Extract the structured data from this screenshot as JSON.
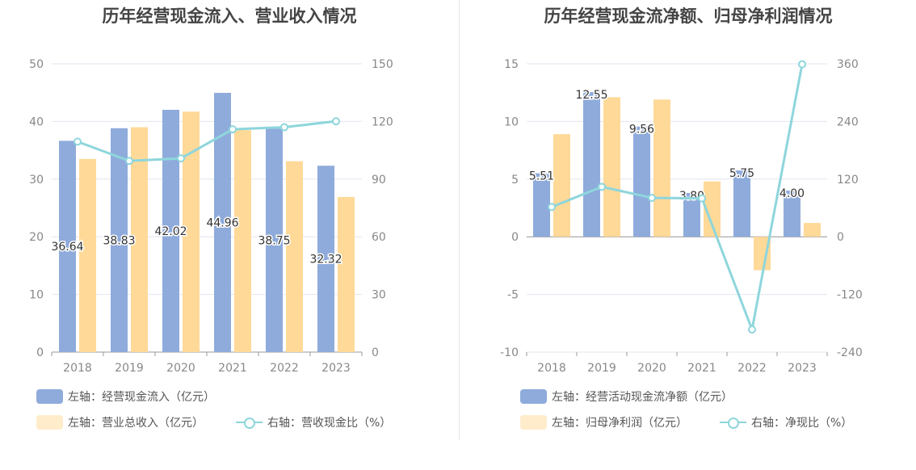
{
  "colors": {
    "blue": "#8eabdb",
    "yellow": "#ffd998",
    "line": "#8ed6dc",
    "axis": "#888888",
    "grid": "#e3e6ef"
  },
  "chart_data": [
    {
      "type": "bar",
      "title": "历年经营现金流入、营业收入情况",
      "categories": [
        "2018",
        "2019",
        "2020",
        "2021",
        "2022",
        "2023"
      ],
      "y_left": {
        "range": [
          0,
          50
        ],
        "ticks": [
          0,
          10,
          20,
          30,
          40,
          50
        ]
      },
      "y_right": {
        "range": [
          0,
          150
        ],
        "ticks": [
          0,
          30,
          60,
          90,
          120,
          150
        ]
      },
      "series": [
        {
          "name": "左轴：经营现金流入（亿元）",
          "axis": "left",
          "kind": "bar",
          "color": "#8eabdb",
          "values": [
            36.64,
            38.83,
            42.02,
            44.96,
            38.75,
            32.32
          ],
          "labels": [
            "36.64",
            "38.83",
            "42.02",
            "44.96",
            "38.75",
            "32.32"
          ]
        },
        {
          "name": "左轴：营业总收入（亿元）",
          "axis": "left",
          "kind": "bar",
          "color": "#ffd998",
          "values": [
            33.5,
            39.0,
            41.7,
            38.5,
            33.1,
            26.9
          ]
        },
        {
          "name": "右轴：营收现金比（%）",
          "axis": "right",
          "kind": "line",
          "color": "#8ed6dc",
          "values": [
            109.5,
            99.5,
            100.8,
            115.9,
            117.0,
            120.1
          ]
        }
      ],
      "grid": true,
      "legend_position": "bottom-left"
    },
    {
      "type": "bar",
      "title": "历年经营现金流净额、归母净利润情况",
      "categories": [
        "2018",
        "2019",
        "2020",
        "2021",
        "2022",
        "2023"
      ],
      "y_left": {
        "range": [
          -10,
          15
        ],
        "ticks": [
          -10,
          -5,
          0,
          5,
          10,
          15
        ]
      },
      "y_right": {
        "range": [
          -240,
          360
        ],
        "ticks": [
          -240,
          -120,
          0,
          120,
          240,
          360
        ]
      },
      "series": [
        {
          "name": "左轴：经营活动现金流净额（亿元）",
          "axis": "left",
          "kind": "bar",
          "color": "#8eabdb",
          "values": [
            5.51,
            12.55,
            9.56,
            3.8,
            5.75,
            4.0
          ],
          "labels": [
            "5.51",
            "12.55",
            "9.56",
            "3.80",
            "5.75",
            "4.00"
          ]
        },
        {
          "name": "左轴：归母净利润（亿元）",
          "axis": "left",
          "kind": "bar",
          "color": "#ffd998",
          "values": [
            8.9,
            12.1,
            11.9,
            4.8,
            -2.9,
            1.2
          ]
        },
        {
          "name": "右轴：净现比（%）",
          "axis": "right",
          "kind": "line",
          "color": "#8ed6dc",
          "values": [
            62,
            104,
            81,
            80,
            -193,
            359
          ]
        }
      ],
      "grid": true,
      "legend_position": "bottom-left"
    }
  ]
}
